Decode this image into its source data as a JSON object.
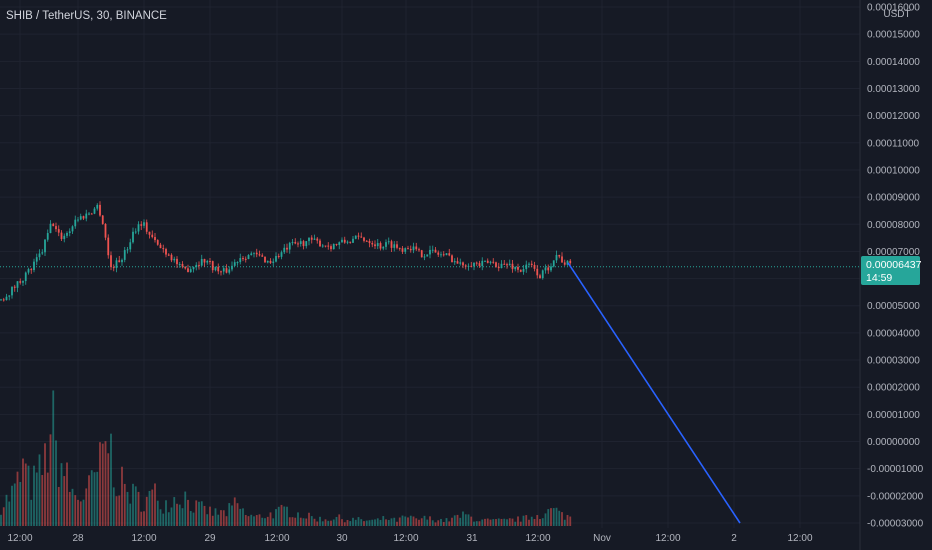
{
  "header": {
    "title": "SHIB / TetherUS, 30, BINANCE"
  },
  "currency_label": "USDT",
  "colors": {
    "background": "#161a25",
    "grid": "#1f2330",
    "up": "#26a69a",
    "down": "#ef5350",
    "trend_line": "#2962ff",
    "last_price_tag": "#26a69a"
  },
  "last_price": {
    "value": "0.00006437",
    "countdown": "14:59"
  },
  "chart_data": {
    "type": "candlestick",
    "title": "SHIB / TetherUS, 30, BINANCE",
    "ylim": [
      -3e-05,
      0.00016
    ],
    "y_ticks": [
      "0.00016000",
      "0.00015000",
      "0.00014000",
      "0.00013000",
      "0.00012000",
      "0.00011000",
      "0.00010000",
      "0.00009000",
      "0.00008000",
      "0.00007000",
      "0.00006000",
      "0.00005000",
      "0.00004000",
      "0.00003000",
      "0.00002000",
      "0.00001000",
      "0.00000000",
      "-0.00001000",
      "-0.00002000",
      "-0.00003000"
    ],
    "x_ticks": [
      "12:00",
      "28",
      "12:00",
      "29",
      "12:00",
      "30",
      "12:00",
      "31",
      "12:00",
      "Nov",
      "12:00",
      "2",
      "12:00"
    ],
    "price_path": [
      [
        0,
        5.2e-05
      ],
      [
        12,
        5.6e-05
      ],
      [
        22,
        6e-05
      ],
      [
        32,
        6.4e-05
      ],
      [
        42,
        7e-05
      ],
      [
        52,
        8.1e-05
      ],
      [
        60,
        7.5e-05
      ],
      [
        68,
        7.7e-05
      ],
      [
        76,
        8.2e-05
      ],
      [
        84,
        8.3e-05
      ],
      [
        92,
        8.5e-05
      ],
      [
        98,
        8.7e-05
      ],
      [
        104,
        7.9e-05
      ],
      [
        110,
        6.4e-05
      ],
      [
        118,
        6.6e-05
      ],
      [
        126,
        7e-05
      ],
      [
        134,
        7.8e-05
      ],
      [
        142,
        8.1e-05
      ],
      [
        150,
        7.6e-05
      ],
      [
        158,
        7.2e-05
      ],
      [
        166,
        7e-05
      ],
      [
        174,
        6.7e-05
      ],
      [
        182,
        6.3e-05
      ],
      [
        190,
        6.4e-05
      ],
      [
        198,
        6.6e-05
      ],
      [
        206,
        6.7e-05
      ],
      [
        214,
        6.4e-05
      ],
      [
        222,
        6.2e-05
      ],
      [
        230,
        6.4e-05
      ],
      [
        240,
        6.8e-05
      ],
      [
        250,
        6.9e-05
      ],
      [
        260,
        6.8e-05
      ],
      [
        270,
        6.6e-05
      ],
      [
        280,
        6.9e-05
      ],
      [
        290,
        7.2e-05
      ],
      [
        300,
        7.3e-05
      ],
      [
        310,
        7.4e-05
      ],
      [
        320,
        7.3e-05
      ],
      [
        330,
        7.2e-05
      ],
      [
        340,
        7.3e-05
      ],
      [
        350,
        7.4e-05
      ],
      [
        360,
        7.5e-05
      ],
      [
        370,
        7.4e-05
      ],
      [
        380,
        7.2e-05
      ],
      [
        390,
        7.3e-05
      ],
      [
        400,
        7.1e-05
      ],
      [
        410,
        7.2e-05
      ],
      [
        420,
        6.9e-05
      ],
      [
        430,
        7e-05
      ],
      [
        440,
        6.9e-05
      ],
      [
        450,
        6.8e-05
      ],
      [
        460,
        6.5e-05
      ],
      [
        470,
        6.6e-05
      ],
      [
        480,
        6.5e-05
      ],
      [
        490,
        6.6e-05
      ],
      [
        500,
        6.5e-05
      ],
      [
        510,
        6.5e-05
      ],
      [
        520,
        6.3e-05
      ],
      [
        530,
        6.5e-05
      ],
      [
        540,
        6.1e-05
      ],
      [
        548,
        6.4e-05
      ],
      [
        556,
        6.9e-05
      ],
      [
        564,
        6.6e-05
      ],
      [
        572,
        6.44e-05
      ]
    ],
    "volume_path": [
      [
        0,
        0.18
      ],
      [
        8,
        0.25
      ],
      [
        16,
        0.35
      ],
      [
        24,
        0.55
      ],
      [
        30,
        0.35
      ],
      [
        38,
        0.45
      ],
      [
        46,
        0.6
      ],
      [
        52,
        1.0
      ],
      [
        56,
        0.65
      ],
      [
        64,
        0.5
      ],
      [
        72,
        0.3
      ],
      [
        80,
        0.25
      ],
      [
        90,
        0.35
      ],
      [
        100,
        0.55
      ],
      [
        108,
        0.8
      ],
      [
        116,
        0.45
      ],
      [
        124,
        0.35
      ],
      [
        134,
        0.28
      ],
      [
        144,
        0.22
      ],
      [
        154,
        0.3
      ],
      [
        164,
        0.2
      ],
      [
        174,
        0.25
      ],
      [
        184,
        0.28
      ],
      [
        194,
        0.18
      ],
      [
        204,
        0.15
      ],
      [
        214,
        0.12
      ],
      [
        226,
        0.12
      ],
      [
        236,
        0.2
      ],
      [
        246,
        0.1
      ],
      [
        256,
        0.08
      ],
      [
        266,
        0.1
      ],
      [
        276,
        0.12
      ],
      [
        286,
        0.15
      ],
      [
        296,
        0.12
      ],
      [
        306,
        0.09
      ],
      [
        316,
        0.07
      ],
      [
        326,
        0.06
      ],
      [
        336,
        0.08
      ],
      [
        346,
        0.06
      ],
      [
        356,
        0.06
      ],
      [
        366,
        0.05
      ],
      [
        376,
        0.05
      ],
      [
        386,
        0.07
      ],
      [
        396,
        0.05
      ],
      [
        406,
        0.08
      ],
      [
        416,
        0.06
      ],
      [
        426,
        0.07
      ],
      [
        436,
        0.06
      ],
      [
        446,
        0.05
      ],
      [
        456,
        0.08
      ],
      [
        466,
        0.1
      ],
      [
        476,
        0.06
      ],
      [
        486,
        0.05
      ],
      [
        496,
        0.05
      ],
      [
        506,
        0.05
      ],
      [
        516,
        0.06
      ],
      [
        526,
        0.07
      ],
      [
        536,
        0.1
      ],
      [
        546,
        0.12
      ],
      [
        554,
        0.15
      ],
      [
        562,
        0.1
      ],
      [
        572,
        0.08
      ]
    ],
    "trend_line": {
      "from": [
        568,
        6.58e-05
      ],
      "to": [
        740,
        -3e-05
      ]
    }
  }
}
